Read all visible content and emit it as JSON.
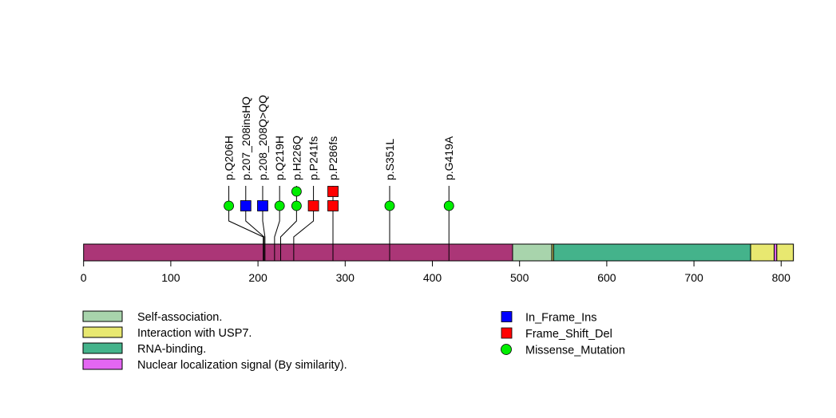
{
  "chart_data": {
    "type": "scatter",
    "subtype": "lollipop",
    "title": "",
    "xlabel": "",
    "ylabel": "",
    "protein_length": 814,
    "xlim": [
      0,
      814
    ],
    "x_ticks": [
      0,
      100,
      200,
      300,
      400,
      500,
      600,
      700,
      800
    ],
    "x_tick_labels": [
      "0",
      "100",
      "200",
      "300",
      "400",
      "500",
      "600",
      "700",
      "800"
    ],
    "grid": false,
    "backbone_color": "#AB3677",
    "domains": [
      {
        "name": "Self-association.",
        "start": 492,
        "end": 537,
        "color": "#A8D4AC"
      },
      {
        "name": "Interaction with USP7.",
        "start": 537,
        "end": 539,
        "color": "#E8E870"
      },
      {
        "name": "RNA-binding.",
        "start": 539,
        "end": 765,
        "color": "#44B38B"
      },
      {
        "name": "Interaction with USP7.",
        "start": 765,
        "end": 792,
        "color": "#E8E870"
      },
      {
        "name": "Nuclear localization signal (By similarity).",
        "start": 792,
        "end": 795,
        "color": "#E466F2"
      },
      {
        "name": "Interaction with USP7.",
        "start": 795,
        "end": 814,
        "color": "#E8E870"
      }
    ],
    "mutations": [
      {
        "label": "p.Q206H",
        "position": 206,
        "type": "Missense_Mutation",
        "count": 1
      },
      {
        "label": "p.207_208insHQ",
        "position": 207,
        "type": "In_Frame_Ins",
        "count": 1
      },
      {
        "label": "p.208_208Q>QQ",
        "position": 208,
        "type": "In_Frame_Ins",
        "count": 1
      },
      {
        "label": "p.Q219H",
        "position": 219,
        "type": "Missense_Mutation",
        "count": 1
      },
      {
        "label": "p.H226Q",
        "position": 226,
        "type": "Missense_Mutation",
        "count": 2
      },
      {
        "label": "p.P241fs",
        "position": 241,
        "type": "Frame_Shift_Del",
        "count": 1
      },
      {
        "label": "p.P286fs",
        "position": 286,
        "type": "Frame_Shift_Del",
        "count": 2
      },
      {
        "label": "p.S351L",
        "position": 351,
        "type": "Missense_Mutation",
        "count": 1
      },
      {
        "label": "p.G419A",
        "position": 419,
        "type": "Missense_Mutation",
        "count": 1
      }
    ],
    "legend_domains": [
      {
        "name": "Self-association.",
        "color": "#A8D4AC"
      },
      {
        "name": "Interaction with USP7.",
        "color": "#E8E870"
      },
      {
        "name": "RNA-binding.",
        "color": "#44B38B"
      },
      {
        "name": "Nuclear localization signal (By similarity).",
        "color": "#E466F2"
      }
    ],
    "legend_mutations": [
      {
        "name": "In_Frame_Ins",
        "shape": "square",
        "color": "#0000FF"
      },
      {
        "name": "Frame_Shift_Del",
        "shape": "square",
        "color": "#FF0000"
      },
      {
        "name": "Missense_Mutation",
        "shape": "circle",
        "color": "#00EE00"
      }
    ],
    "legend_placement": "bottom"
  }
}
